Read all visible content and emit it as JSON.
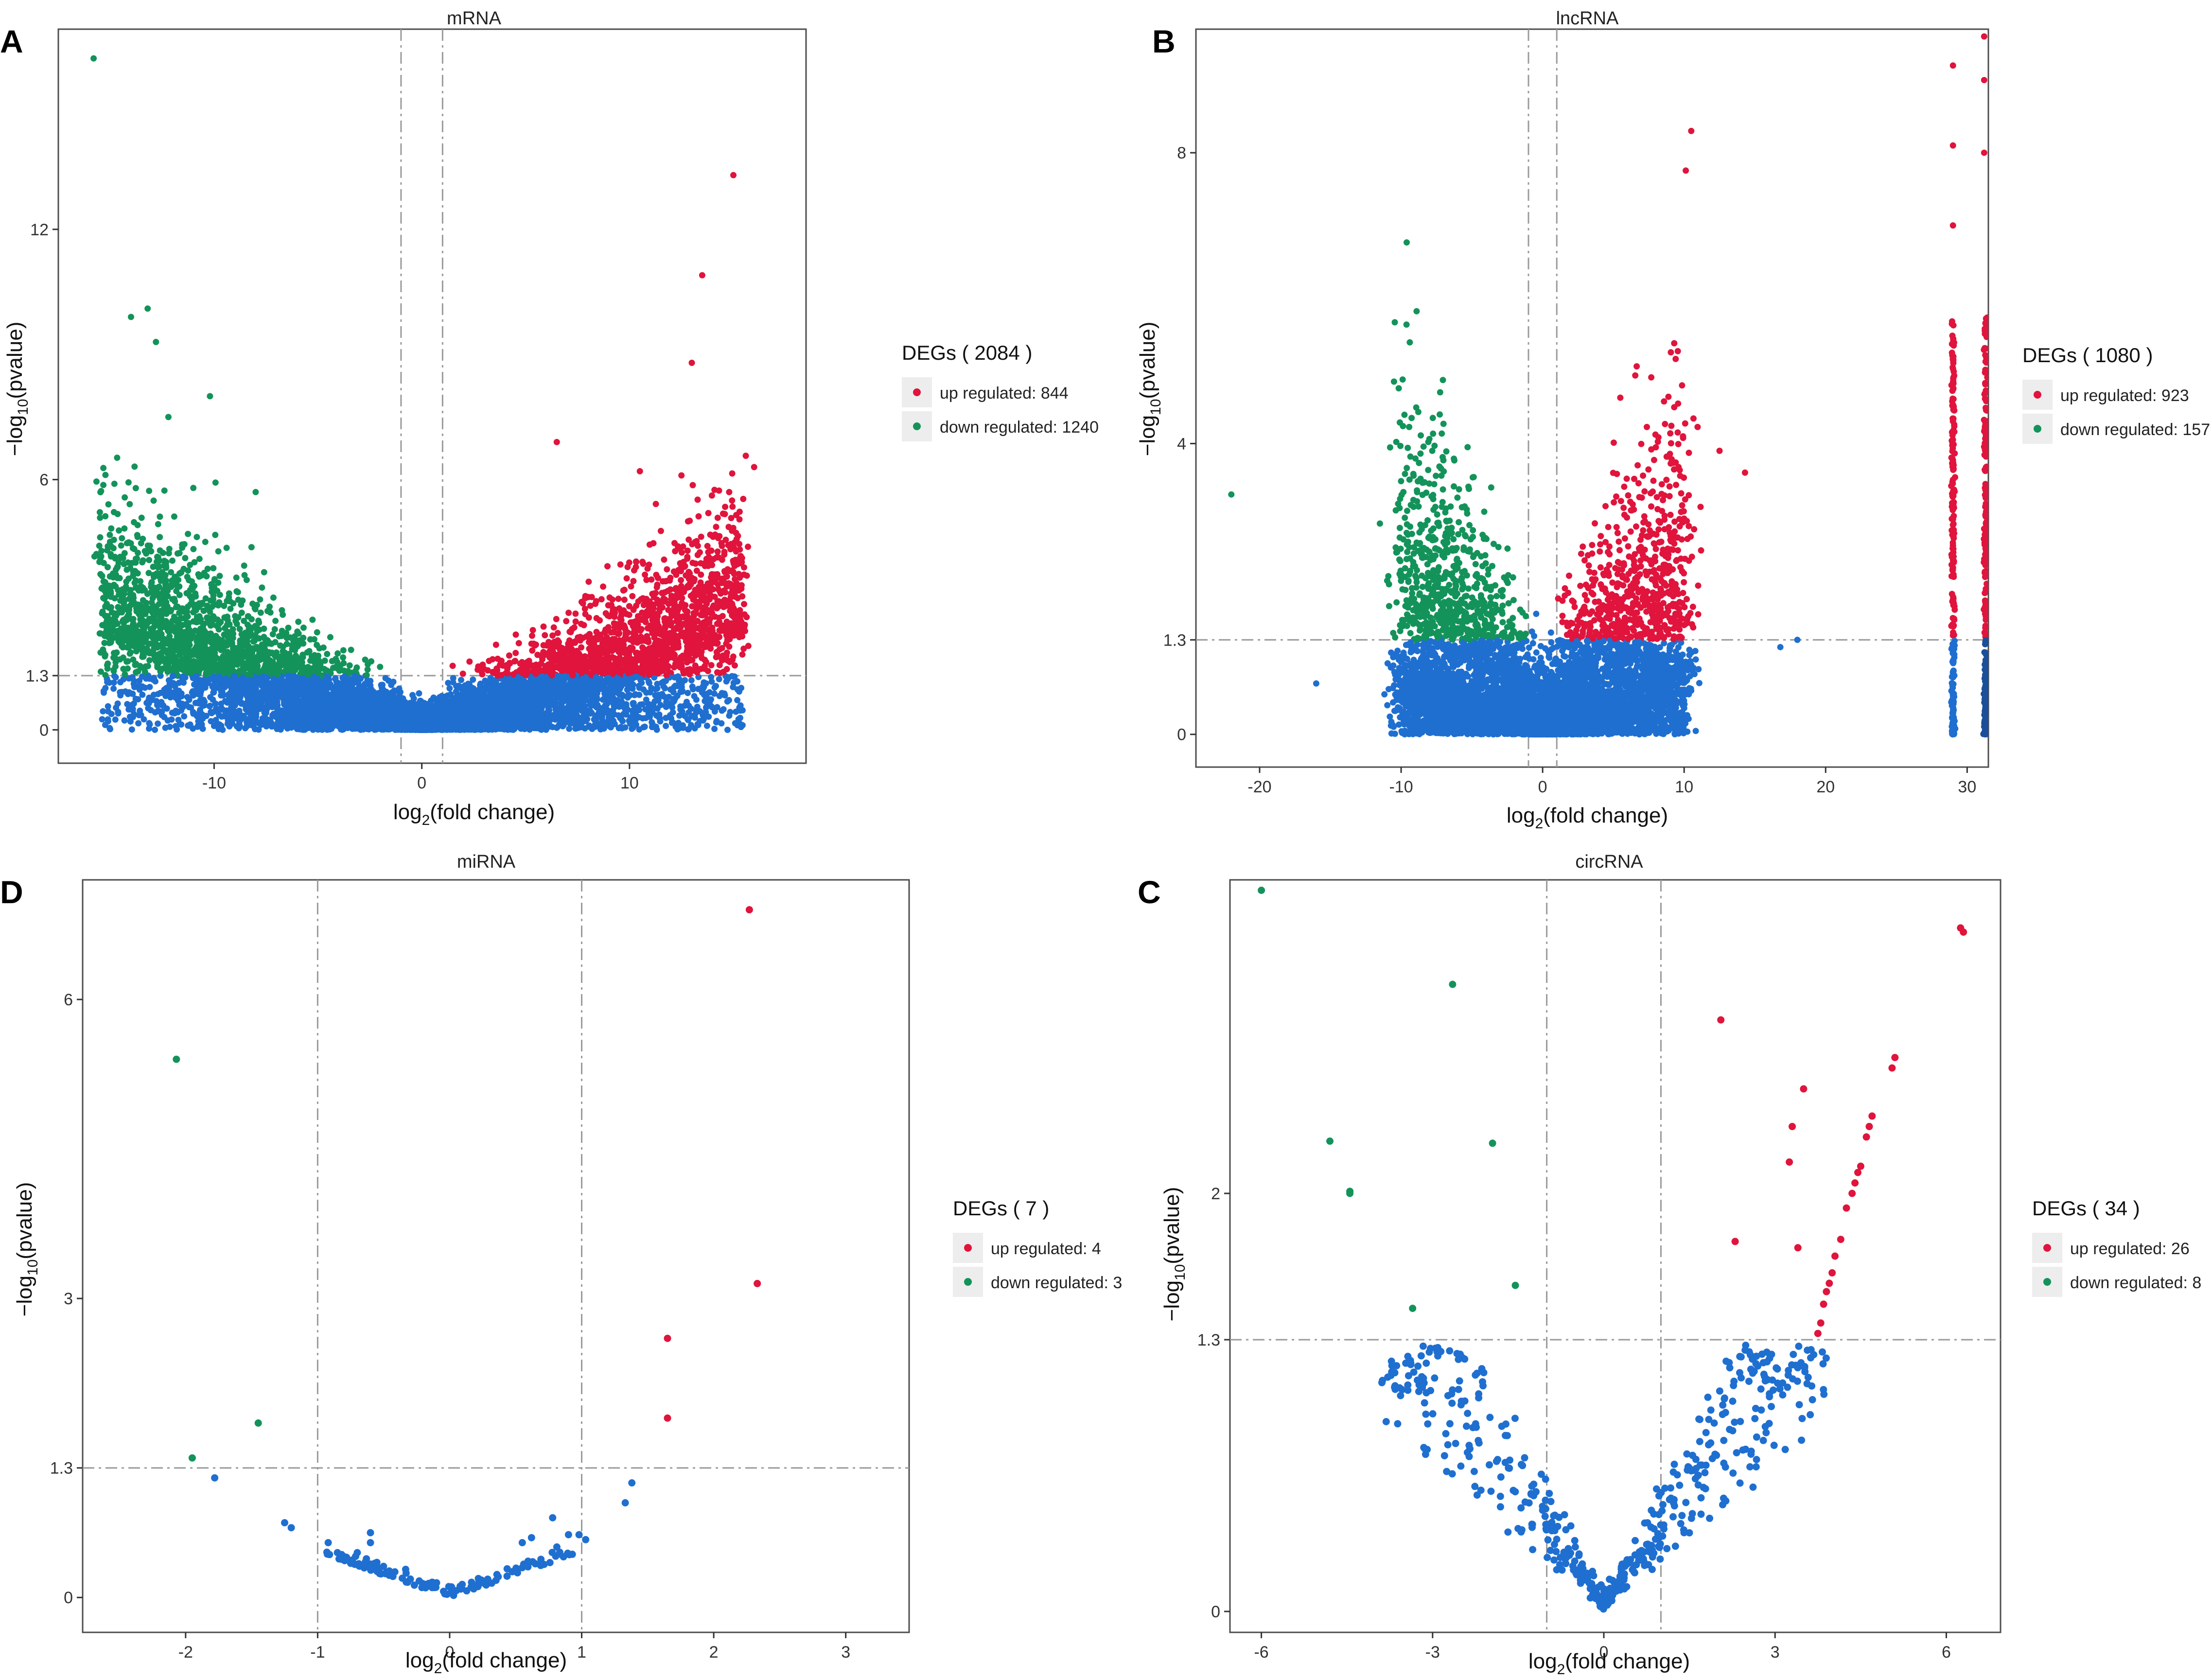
{
  "colors": {
    "up": "#e0143c",
    "down": "#13935a",
    "ns": "#1f6fd0",
    "ns_dark": "#1a4f9a",
    "ref_line": "#9a9a9a",
    "frame": "#4d4d4d",
    "legend_key_bg": "#ededed"
  },
  "chart_data": [
    {
      "id": "mrna",
      "panel_letter": "A",
      "type": "scatter",
      "title": "mRNA",
      "xlabel_main": "log",
      "xlabel_sub": "2",
      "xlabel_rest": "(fold change)",
      "ylabel_main": "−log",
      "ylabel_sub": "10",
      "ylabel_rest": "(pvalue)",
      "xlim": [
        -17.5,
        18.5
      ],
      "ylim": [
        -0.8,
        16.8
      ],
      "xticks": [
        -10,
        0,
        10
      ],
      "xtick_labels": [
        "-10",
        "0",
        "10"
      ],
      "yticks": [
        0,
        1.3,
        6,
        12
      ],
      "ytick_labels": [
        "0",
        "1.3",
        "6",
        "12"
      ],
      "vlines": [
        -1,
        1
      ],
      "hline": 1.3,
      "legend": {
        "title": "DEGs ( 2084 )",
        "up_label": "up regulated: 844",
        "down_label": "down regulated: 1240"
      },
      "counts": {
        "up": 844,
        "down": 1240
      },
      "highlight_points": {
        "up": [
          [
            15,
            13.3
          ],
          [
            13.5,
            10.9
          ],
          [
            16,
            6.3
          ],
          [
            13,
            8.8
          ],
          [
            6.5,
            6.9
          ],
          [
            14.8,
            5.7
          ],
          [
            12.5,
            6.1
          ],
          [
            10.5,
            6.2
          ]
        ],
        "down": [
          [
            -15.8,
            16.1
          ],
          [
            -14,
            9.9
          ],
          [
            -13.2,
            10.1
          ],
          [
            -12.8,
            9.3
          ],
          [
            -10.2,
            8
          ],
          [
            -14.8,
            5.9
          ],
          [
            -12.2,
            7.5
          ],
          [
            -11,
            5.8
          ],
          [
            -8,
            5.7
          ]
        ]
      }
    },
    {
      "id": "lncrna",
      "panel_letter": "B",
      "type": "scatter",
      "title": "lncRNA",
      "xlabel_main": "log",
      "xlabel_sub": "2",
      "xlabel_rest": "(fold change)",
      "ylabel_main": "−log",
      "ylabel_sub": "10",
      "ylabel_rest": "(pvalue)",
      "xlim": [
        -24.5,
        31.5
      ],
      "ylim": [
        -0.45,
        9.7
      ],
      "xticks": [
        -20,
        -10,
        0,
        10,
        20,
        30
      ],
      "xtick_labels": [
        "-20",
        "-10",
        "0",
        "10",
        "20",
        "30"
      ],
      "yticks": [
        0,
        1.3,
        4,
        8
      ],
      "ytick_labels": [
        "0",
        "1.3",
        "4",
        "8"
      ],
      "vlines": [
        -1,
        1
      ],
      "hline": 1.3,
      "legend": {
        "title": "DEGs ( 1080 )",
        "up_label": "up regulated: 923",
        "down_label": "down regulated: 157"
      },
      "counts": {
        "up": 923,
        "down": 157
      },
      "highlight_points": {
        "up": [
          [
            10.5,
            8.3
          ],
          [
            29,
            8.1
          ],
          [
            29,
            9.2
          ],
          [
            29,
            7
          ],
          [
            31.2,
            9.6
          ],
          [
            31.2,
            9
          ],
          [
            31.2,
            8
          ],
          [
            9.3,
            4.5
          ],
          [
            14.3,
            3.6
          ],
          [
            12.5,
            3.9
          ]
        ],
        "down": [
          [
            -22,
            3.3
          ],
          [
            -7.8,
            3.9
          ],
          [
            -11.5,
            2.9
          ]
        ],
        "ns": [
          [
            -16,
            0.7
          ],
          [
            16.8,
            1.2
          ],
          [
            18,
            1.3
          ]
        ]
      }
    },
    {
      "id": "mirna",
      "panel_letter": "D",
      "type": "scatter",
      "title": "miRNA",
      "xlabel_main": "log",
      "xlabel_sub": "2",
      "xlabel_rest": "(fold change)",
      "ylabel_main": "−log",
      "ylabel_sub": "10",
      "ylabel_rest": "(pvalue)",
      "xlim": [
        -2.78,
        3.48
      ],
      "ylim": [
        -0.35,
        7.2
      ],
      "xticks": [
        -2,
        -1,
        0,
        1,
        2,
        3
      ],
      "xtick_labels": [
        "-2",
        "-1",
        "0",
        "1",
        "2",
        "3"
      ],
      "yticks": [
        0,
        1.3,
        3,
        6
      ],
      "ytick_labels": [
        "0",
        "1.3",
        "3",
        "6"
      ],
      "vlines": [
        -1,
        1
      ],
      "hline": 1.3,
      "legend": {
        "title": "DEGs ( 7 )",
        "up_label": "up regulated: 4",
        "down_label": "down regulated: 3"
      },
      "counts": {
        "up": 4,
        "down": 3
      },
      "points": {
        "up": [
          [
            2.27,
            6.9
          ],
          [
            2.33,
            3.15
          ],
          [
            1.65,
            2.6
          ],
          [
            1.65,
            1.8
          ]
        ],
        "down": [
          [
            -2.07,
            5.4
          ],
          [
            -1.45,
            1.75
          ],
          [
            -1.95,
            1.4
          ]
        ],
        "ns": [
          [
            -1.78,
            1.2
          ],
          [
            1.38,
            1.15
          ],
          [
            1.33,
            0.95
          ],
          [
            -1.25,
            0.75
          ],
          [
            -1.2,
            0.7
          ],
          [
            0.78,
            0.8
          ],
          [
            0.9,
            0.63
          ],
          [
            0.98,
            0.63
          ],
          [
            1.03,
            0.58
          ],
          [
            -0.92,
            0.55
          ],
          [
            -0.6,
            0.65
          ],
          [
            -0.6,
            0.55
          ],
          [
            -0.7,
            0.45
          ],
          [
            -0.85,
            0.45
          ],
          [
            0.62,
            0.6
          ],
          [
            0.55,
            0.55
          ]
        ]
      }
    },
    {
      "id": "circrna",
      "panel_letter": "C",
      "type": "scatter",
      "title": "circRNA",
      "xlabel_main": "log",
      "xlabel_sub": "2",
      "xlabel_rest": "(fold change)",
      "ylabel_main": "−log",
      "ylabel_sub": "10",
      "ylabel_rest": "(pvalue)",
      "xlim": [
        -6.55,
        6.95
      ],
      "ylim": [
        -0.1,
        3.5
      ],
      "xticks": [
        -6,
        -3,
        0,
        3,
        6
      ],
      "xtick_labels": [
        "-6",
        "-3",
        "0",
        "3",
        "6"
      ],
      "yticks": [
        0,
        1.3,
        2
      ],
      "ytick_labels": [
        "0",
        "1.3",
        "2"
      ],
      "vlines": [
        -1,
        1
      ],
      "hline": 1.3,
      "legend": {
        "title": "DEGs ( 34 )",
        "up_label": "up regulated: 26",
        "down_label": "down regulated: 8"
      },
      "counts": {
        "up": 26,
        "down": 8
      },
      "points": {
        "up": [
          [
            6.3,
            3.25
          ],
          [
            5.1,
            2.65
          ],
          [
            5.05,
            2.6
          ],
          [
            3.5,
            2.5
          ],
          [
            2.05,
            2.83
          ],
          [
            3.3,
            2.32
          ],
          [
            3.25,
            2.15
          ],
          [
            4.7,
            2.37
          ],
          [
            4.65,
            2.32
          ],
          [
            4.6,
            2.27
          ],
          [
            4.5,
            2.13
          ],
          [
            4.45,
            2.1
          ],
          [
            4.4,
            2.05
          ],
          [
            4.25,
            1.93
          ],
          [
            2.3,
            1.77
          ],
          [
            3.4,
            1.74
          ],
          [
            4.15,
            1.78
          ],
          [
            4.05,
            1.7
          ],
          [
            4.0,
            1.62
          ],
          [
            3.95,
            1.57
          ],
          [
            3.9,
            1.53
          ],
          [
            3.85,
            1.47
          ],
          [
            3.8,
            1.38
          ],
          [
            3.75,
            1.33
          ],
          [
            6.25,
            3.27
          ],
          [
            4.35,
            2.0
          ]
        ],
        "down": [
          [
            -6.0,
            3.45
          ],
          [
            -2.65,
            3.0
          ],
          [
            -4.8,
            2.25
          ],
          [
            -1.95,
            2.24
          ],
          [
            -4.45,
            2.01
          ],
          [
            -4.45,
            2.0
          ],
          [
            -1.55,
            1.56
          ],
          [
            -3.35,
            1.45
          ]
        ]
      }
    }
  ]
}
